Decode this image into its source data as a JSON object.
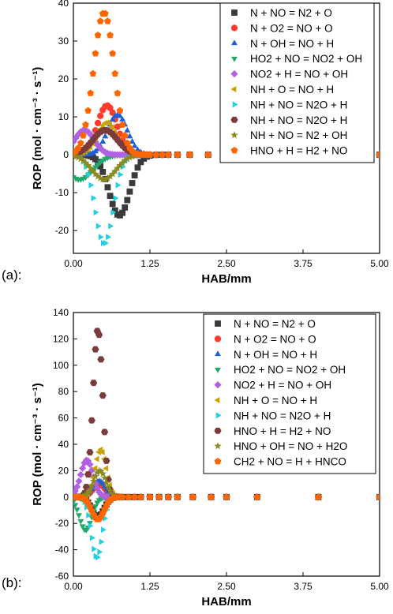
{
  "panels": [
    {
      "label": "(a):"
    },
    {
      "label": "(b):"
    }
  ],
  "chart_data": [
    {
      "type": "scatter",
      "title": "",
      "xlabel": "HAB/mm",
      "ylabel": "ROP (mol · cm⁻³ · s⁻¹)",
      "xlim": [
        0,
        5
      ],
      "ylim": [
        -26,
        40
      ],
      "xticks": [
        "0.00",
        "1.25",
        "2.50",
        "3.75",
        "5.00"
      ],
      "xtick_values": [
        0,
        1.25,
        2.5,
        3.75,
        5
      ],
      "yticks": [
        "-20",
        "-10",
        "0",
        "10",
        "20",
        "30",
        "40"
      ],
      "ytick_values": [
        -20,
        -10,
        0,
        10,
        20,
        30,
        40
      ],
      "legend_position": "top-right",
      "series": [
        {
          "name": "N + NO = N2 + O",
          "color": "#3a3a3a",
          "marker": "square",
          "peak_x": 0.75,
          "peak_y": -16,
          "width": 0.17
        },
        {
          "name": "N + O2 = NO + O",
          "color": "#ff3b30",
          "marker": "circle",
          "peak_x": 0.55,
          "peak_y": 13,
          "width": 0.16
        },
        {
          "name": "N + OH = NO + H",
          "color": "#1f5fd6",
          "marker": "triangle-up",
          "peak_x": 0.72,
          "peak_y": 10.5,
          "width": 0.16
        },
        {
          "name": "HO2 + NO = NO2 + OH",
          "color": "#22a86a",
          "marker": "triangle-down",
          "peak_x": 0.1,
          "peak_y": -6.5,
          "width": 0.22
        },
        {
          "name": "NO2 + H = NO + OH",
          "color": "#b060e0",
          "marker": "diamond",
          "peak_x": 0.18,
          "peak_y": 6.5,
          "width": 0.16
        },
        {
          "name": "NH + O = NO + H",
          "color": "#c9a100",
          "marker": "triangle-left",
          "peak_x": 0.55,
          "peak_y": 8.5,
          "width": 0.16
        },
        {
          "name": "NH + NO = N2O + H",
          "color": "#20d0e0",
          "marker": "triangle-right",
          "peak_x": 0.5,
          "peak_y": -23.5,
          "width": 0.15
        },
        {
          "name": "NH + NO = N2O + H",
          "color": "#7a3b3b",
          "marker": "hexagon",
          "peak_x": 0.52,
          "peak_y": 6.5,
          "width": 0.2
        },
        {
          "name": "NH + NO = N2 + OH",
          "color": "#8a8a20",
          "marker": "star",
          "peak_x": 0.5,
          "peak_y": -6.5,
          "width": 0.2
        },
        {
          "name": "HNO + H = H2 + NO",
          "color": "#ff6600",
          "marker": "pentagon",
          "peak_x": 0.5,
          "peak_y": 37.5,
          "width": 0.17
        }
      ],
      "x_points": [
        0,
        0.04,
        0.08,
        0.12,
        0.16,
        0.2,
        0.24,
        0.28,
        0.32,
        0.36,
        0.4,
        0.44,
        0.48,
        0.52,
        0.56,
        0.6,
        0.64,
        0.68,
        0.72,
        0.76,
        0.8,
        0.84,
        0.88,
        0.92,
        0.96,
        1.0,
        1.05,
        1.1,
        1.15,
        1.2,
        1.25,
        1.35,
        1.45,
        1.55,
        1.7,
        1.9,
        2.2,
        2.5,
        3.0,
        3.5,
        4.0,
        5.0
      ]
    },
    {
      "type": "scatter",
      "title": "",
      "xlabel": "HAB/mm",
      "ylabel": "ROP (mol · cm⁻³ · s⁻¹)",
      "xlim": [
        0,
        5
      ],
      "ylim": [
        -60,
        140
      ],
      "xticks": [
        "0.00",
        "1.25",
        "2.50",
        "3.75",
        "5.00"
      ],
      "xtick_values": [
        0,
        1.25,
        2.5,
        3.75,
        5
      ],
      "yticks": [
        "-60",
        "-40",
        "-20",
        "0",
        "20",
        "40",
        "60",
        "80",
        "100",
        "120",
        "140"
      ],
      "ytick_values": [
        -60,
        -40,
        -20,
        0,
        20,
        40,
        60,
        80,
        100,
        120,
        140
      ],
      "legend_position": "top-right",
      "series": [
        {
          "name": "N + NO = N2 + O",
          "color": "#3a3a3a",
          "marker": "square",
          "peak_x": 0.4,
          "peak_y": -15,
          "width": 0.1
        },
        {
          "name": "N + O2 = NO + O",
          "color": "#ff3b30",
          "marker": "circle",
          "peak_x": 0.42,
          "peak_y": 10,
          "width": 0.1
        },
        {
          "name": "N + OH = NO + H",
          "color": "#1f5fd6",
          "marker": "triangle-up",
          "peak_x": 0.42,
          "peak_y": 12,
          "width": 0.1
        },
        {
          "name": "HO2 + NO = NO2 + OH",
          "color": "#22a86a",
          "marker": "triangle-down",
          "peak_x": 0.2,
          "peak_y": -25,
          "width": 0.1
        },
        {
          "name": "NO2 + H = NO + OH",
          "color": "#b060e0",
          "marker": "diamond",
          "peak_x": 0.22,
          "peak_y": 28,
          "width": 0.1
        },
        {
          "name": "NH + O = NO + H",
          "color": "#c9a100",
          "marker": "triangle-left",
          "peak_x": 0.45,
          "peak_y": 36,
          "width": 0.09
        },
        {
          "name": "NH + NO = N2O + H",
          "color": "#20d0e0",
          "marker": "triangle-right",
          "peak_x": 0.38,
          "peak_y": -46,
          "width": 0.09
        },
        {
          "name": "HNO + H = H2 + NO",
          "color": "#7a3b3b",
          "marker": "hexagon",
          "peak_x": 0.4,
          "peak_y": 127,
          "width": 0.08
        },
        {
          "name": "HNO + OH = NO + H2O",
          "color": "#8a8a20",
          "marker": "star",
          "peak_x": 0.43,
          "peak_y": 20,
          "width": 0.1
        },
        {
          "name": "CH2 + NO = H + HNCO",
          "color": "#ff6600",
          "marker": "pentagon",
          "peak_x": 0.4,
          "peak_y": -17,
          "width": 0.1
        }
      ],
      "x_points": [
        0,
        0.03,
        0.06,
        0.09,
        0.12,
        0.15,
        0.18,
        0.21,
        0.24,
        0.27,
        0.3,
        0.33,
        0.36,
        0.39,
        0.42,
        0.45,
        0.48,
        0.51,
        0.54,
        0.57,
        0.6,
        0.65,
        0.7,
        0.75,
        0.8,
        0.9,
        1.0,
        1.1,
        1.25,
        1.4,
        1.55,
        1.7,
        1.95,
        2.25,
        2.5,
        3.0,
        4.0,
        5.0
      ]
    }
  ]
}
